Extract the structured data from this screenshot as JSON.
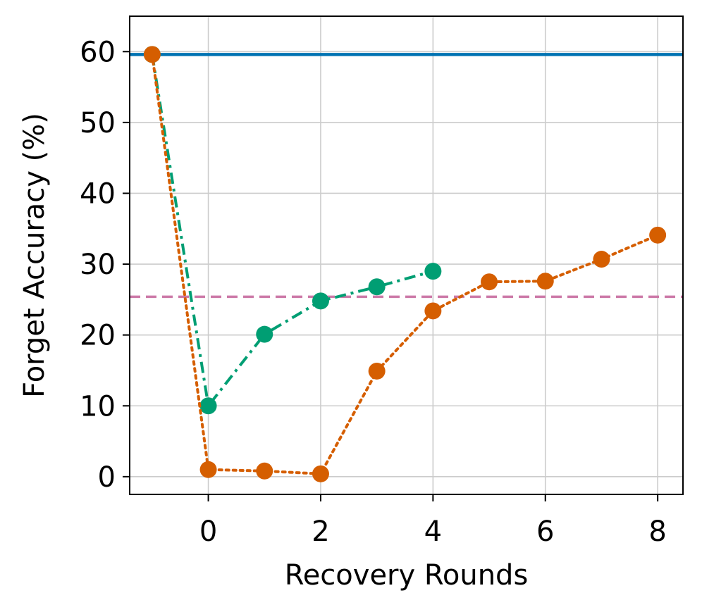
{
  "chart_data": {
    "type": "line",
    "xlabel": "Recovery Rounds",
    "ylabel": "Forget Accuracy (%)",
    "xlim": [
      -1.4,
      8.45
    ],
    "ylim": [
      -2.5,
      65
    ],
    "xticks": [
      0,
      2,
      4,
      6,
      8
    ],
    "xtick_labels": [
      "0",
      "2",
      "4",
      "6",
      "8"
    ],
    "yticks": [
      0,
      10,
      20,
      30,
      40,
      50,
      60
    ],
    "ytick_labels": [
      "0",
      "10",
      "20",
      "30",
      "40",
      "50",
      "60"
    ],
    "grid": true,
    "legend": "none",
    "colors": {
      "blue": "#0072B2",
      "green": "#009E73",
      "orange": "#D55E00",
      "pink": "#CC79A7"
    },
    "reference_lines": [
      {
        "y": 59.6,
        "color": "#0072B2",
        "style": "solid"
      },
      {
        "y": 25.4,
        "color": "#CC79A7",
        "style": "dashed"
      }
    ],
    "series": [
      {
        "color": "#009E73",
        "style": "dashdot",
        "x": [
          -1,
          0,
          1,
          2,
          3,
          4
        ],
        "y": [
          59.6,
          10.0,
          20.1,
          24.8,
          26.8,
          29.0
        ]
      },
      {
        "color": "#D55E00",
        "style": "dotted",
        "x": [
          -1,
          0,
          1,
          2,
          3,
          4,
          5,
          6,
          7,
          8
        ],
        "y": [
          59.6,
          1.0,
          0.8,
          0.4,
          14.9,
          23.4,
          27.5,
          27.6,
          30.7,
          34.1
        ]
      }
    ]
  }
}
